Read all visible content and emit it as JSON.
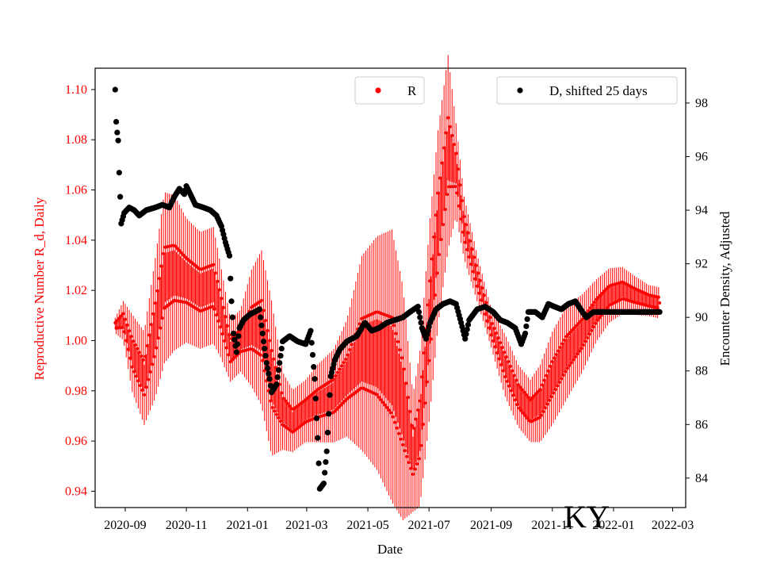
{
  "chart_data": {
    "type": "scatter",
    "xlabel": "Date",
    "ylabel_left": "Reproductive Number R_d, Daily",
    "ylabel_right": "Encounter Density, Adjusted",
    "stamp": "KY",
    "x_ticks": [
      "2020-09",
      "2020-11",
      "2021-01",
      "2021-03",
      "2021-05",
      "2021-07",
      "2021-09",
      "2021-11",
      "2022-01",
      "2022-03"
    ],
    "x_tick_dates": [
      "2020-09-01",
      "2020-11-01",
      "2021-01-01",
      "2021-03-01",
      "2021-05-01",
      "2021-07-01",
      "2021-09-01",
      "2021-11-01",
      "2022-01-01",
      "2022-03-01"
    ],
    "xlim": [
      "2020-08-02",
      "2022-03-14"
    ],
    "y_left_ticks": [
      "0.94",
      "0.96",
      "0.98",
      "1.00",
      "1.02",
      "1.04",
      "1.06",
      "1.08",
      "1.10"
    ],
    "y_left_lim": [
      0.9335,
      1.1085
    ],
    "y_right_ticks": [
      "84",
      "86",
      "88",
      "90",
      "92",
      "94",
      "96",
      "98"
    ],
    "y_right_lim": [
      82.9,
      99.3
    ],
    "grid": false,
    "colors": {
      "R": "#ff0000",
      "D": "#000000",
      "left_axis": "#ff0000",
      "right_axis": "#000000"
    },
    "series": [
      {
        "name": "R",
        "axis": "left",
        "style": "red points with daily error bars",
        "points": [
          [
            "2020-08-22",
            1.006,
            0.002
          ],
          [
            "2020-08-30",
            1.008,
            0.005
          ],
          [
            "2020-09-08",
            0.995,
            0.01
          ],
          [
            "2020-09-20",
            0.985,
            0.012
          ],
          [
            "2020-10-01",
            1.005,
            0.018
          ],
          [
            "2020-10-10",
            1.025,
            0.022
          ],
          [
            "2020-10-20",
            1.027,
            0.02
          ],
          [
            "2020-11-01",
            1.024,
            0.016
          ],
          [
            "2020-11-15",
            1.02,
            0.015
          ],
          [
            "2020-11-28",
            1.022,
            0.015
          ],
          [
            "2020-12-05",
            1.012,
            0.012
          ],
          [
            "2020-12-15",
            0.996,
            0.008
          ],
          [
            "2020-12-25",
            1.0,
            0.008
          ],
          [
            "2021-01-05",
            1.005,
            0.015
          ],
          [
            "2021-01-15",
            1.005,
            0.02
          ],
          [
            "2021-01-25",
            0.985,
            0.02
          ],
          [
            "2021-02-05",
            0.972,
            0.01
          ],
          [
            "2021-02-15",
            0.968,
            0.008
          ],
          [
            "2021-02-28",
            0.972,
            0.008
          ],
          [
            "2021-03-12",
            0.975,
            0.01
          ],
          [
            "2021-03-28",
            0.978,
            0.012
          ],
          [
            "2021-04-10",
            0.985,
            0.015
          ],
          [
            "2021-04-25",
            0.995,
            0.025
          ],
          [
            "2021-05-10",
            0.995,
            0.03
          ],
          [
            "2021-05-25",
            0.99,
            0.035
          ],
          [
            "2021-06-05",
            0.975,
            0.03
          ],
          [
            "2021-06-15",
            0.955,
            0.015
          ],
          [
            "2021-06-22",
            0.965,
            0.02
          ],
          [
            "2021-07-02",
            1.01,
            0.025
          ],
          [
            "2021-07-10",
            1.045,
            0.025
          ],
          [
            "2021-07-20",
            1.075,
            0.025
          ],
          [
            "2021-07-28",
            1.068,
            0.012
          ],
          [
            "2021-08-05",
            1.045,
            0.008
          ],
          [
            "2021-08-18",
            1.025,
            0.006
          ],
          [
            "2021-09-01",
            1.005,
            0.005
          ],
          [
            "2021-09-15",
            0.99,
            0.008
          ],
          [
            "2021-09-28",
            0.978,
            0.008
          ],
          [
            "2021-10-10",
            0.972,
            0.008
          ],
          [
            "2021-10-20",
            0.975,
            0.01
          ],
          [
            "2021-11-01",
            0.985,
            0.012
          ],
          [
            "2021-11-15",
            0.995,
            0.012
          ],
          [
            "2021-12-01",
            1.003,
            0.01
          ],
          [
            "2021-12-15",
            1.012,
            0.008
          ],
          [
            "2021-12-28",
            1.018,
            0.007
          ],
          [
            "2022-01-10",
            1.02,
            0.006
          ],
          [
            "2022-01-22",
            1.018,
            0.005
          ],
          [
            "2022-02-05",
            1.016,
            0.004
          ],
          [
            "2022-02-16",
            1.015,
            0.004
          ]
        ]
      },
      {
        "name": "D, shifted 25 days",
        "axis": "right",
        "style": "black points",
        "points": [
          [
            "2020-08-22",
            98.5
          ],
          [
            "2020-08-23",
            97.3
          ],
          [
            "2020-08-24",
            96.9
          ],
          [
            "2020-08-25",
            96.6
          ],
          [
            "2020-08-26",
            95.4
          ],
          [
            "2020-08-27",
            94.5
          ],
          [
            "2020-08-28",
            93.5
          ],
          [
            "2020-08-31",
            93.9
          ],
          [
            "2020-09-05",
            94.1
          ],
          [
            "2020-09-10",
            94.0
          ],
          [
            "2020-09-15",
            93.8
          ],
          [
            "2020-09-22",
            94.0
          ],
          [
            "2020-10-01",
            94.1
          ],
          [
            "2020-10-08",
            94.2
          ],
          [
            "2020-10-15",
            94.1
          ],
          [
            "2020-10-20",
            94.5
          ],
          [
            "2020-10-25",
            94.8
          ],
          [
            "2020-10-30",
            94.6
          ],
          [
            "2020-11-01",
            94.9
          ],
          [
            "2020-11-05",
            94.6
          ],
          [
            "2020-11-10",
            94.2
          ],
          [
            "2020-11-18",
            94.1
          ],
          [
            "2020-11-25",
            94.0
          ],
          [
            "2020-12-01",
            93.8
          ],
          [
            "2020-12-06",
            93.4
          ],
          [
            "2020-12-10",
            92.8
          ],
          [
            "2020-12-14",
            92.3
          ],
          [
            "2020-12-16",
            90.6
          ],
          [
            "2020-12-18",
            89.4
          ],
          [
            "2020-12-21",
            88.7
          ],
          [
            "2020-12-24",
            89.6
          ],
          [
            "2020-12-28",
            89.9
          ],
          [
            "2021-01-03",
            90.1
          ],
          [
            "2021-01-08",
            90.2
          ],
          [
            "2021-01-13",
            90.3
          ],
          [
            "2021-01-17",
            89.1
          ],
          [
            "2021-01-20",
            88.3
          ],
          [
            "2021-01-23",
            87.7
          ],
          [
            "2021-01-25",
            87.2
          ],
          [
            "2021-01-30",
            87.5
          ],
          [
            "2021-02-05",
            89.1
          ],
          [
            "2021-02-12",
            89.3
          ],
          [
            "2021-02-20",
            89.1
          ],
          [
            "2021-02-28",
            89.0
          ],
          [
            "2021-03-05",
            89.5
          ],
          [
            "2021-03-09",
            87.7
          ],
          [
            "2021-03-12",
            85.5
          ],
          [
            "2021-03-14",
            83.6
          ],
          [
            "2021-03-18",
            83.8
          ],
          [
            "2021-03-21",
            85.0
          ],
          [
            "2021-03-25",
            87.8
          ],
          [
            "2021-03-29",
            88.4
          ],
          [
            "2021-04-03",
            88.8
          ],
          [
            "2021-04-10",
            89.1
          ],
          [
            "2021-04-20",
            89.3
          ],
          [
            "2021-04-28",
            89.8
          ],
          [
            "2021-05-05",
            89.5
          ],
          [
            "2021-05-12",
            89.6
          ],
          [
            "2021-05-20",
            89.8
          ],
          [
            "2021-05-28",
            89.9
          ],
          [
            "2021-06-05",
            90.0
          ],
          [
            "2021-06-12",
            90.2
          ],
          [
            "2021-06-20",
            90.4
          ],
          [
            "2021-06-24",
            89.6
          ],
          [
            "2021-06-28",
            89.2
          ],
          [
            "2021-07-02",
            89.8
          ],
          [
            "2021-07-08",
            90.3
          ],
          [
            "2021-07-15",
            90.5
          ],
          [
            "2021-07-22",
            90.6
          ],
          [
            "2021-07-28",
            90.5
          ],
          [
            "2021-08-02",
            89.8
          ],
          [
            "2021-08-06",
            89.2
          ],
          [
            "2021-08-10",
            89.9
          ],
          [
            "2021-08-18",
            90.3
          ],
          [
            "2021-08-26",
            90.4
          ],
          [
            "2021-09-03",
            90.2
          ],
          [
            "2021-09-10",
            89.9
          ],
          [
            "2021-09-17",
            89.8
          ],
          [
            "2021-09-25",
            89.6
          ],
          [
            "2021-10-01",
            89.0
          ],
          [
            "2021-10-05",
            89.4
          ],
          [
            "2021-10-08",
            90.2
          ],
          [
            "2021-10-15",
            90.2
          ],
          [
            "2021-10-22",
            90.0
          ],
          [
            "2021-10-28",
            90.5
          ],
          [
            "2021-11-03",
            90.4
          ],
          [
            "2021-11-10",
            90.3
          ],
          [
            "2021-11-17",
            90.5
          ],
          [
            "2021-11-24",
            90.6
          ],
          [
            "2021-12-01",
            90.2
          ],
          [
            "2021-12-05",
            90.0
          ],
          [
            "2021-12-12",
            90.2
          ],
          [
            "2021-12-20",
            90.2
          ],
          [
            "2021-12-28",
            90.2
          ],
          [
            "2022-01-05",
            90.2
          ],
          [
            "2022-01-15",
            90.2
          ],
          [
            "2022-01-25",
            90.2
          ],
          [
            "2022-02-05",
            90.2
          ],
          [
            "2022-02-16",
            90.2
          ]
        ]
      }
    ],
    "legends": [
      {
        "label": "R",
        "marker_color": "#ff0000",
        "placement": "top-center"
      },
      {
        "label": "D, shifted 25 days",
        "marker_color": "#000000",
        "placement": "top-right"
      }
    ]
  }
}
